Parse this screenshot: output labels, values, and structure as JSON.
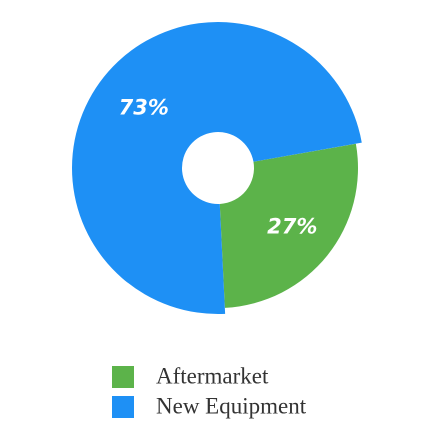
{
  "chart_data": {
    "type": "donut",
    "categories": [
      "Aftermarket",
      "New Equipment"
    ],
    "values": [
      27,
      73
    ],
    "value_labels": [
      "27%",
      "73%"
    ],
    "colors": [
      "#5cb34a",
      "#1e90f5"
    ]
  }
}
